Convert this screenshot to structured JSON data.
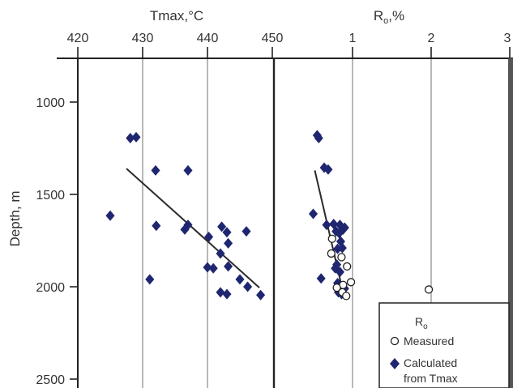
{
  "colors": {
    "diamond": "#1f2670",
    "trend": "#2a2a2a",
    "grid": "#888888",
    "axis": "#222222",
    "text": "#333333"
  },
  "chart_data": [
    {
      "type": "scatter",
      "title": "",
      "xlabel": "Tmax,°C",
      "ylabel": "Depth, m",
      "x_axis_position": "top",
      "xlim": [
        420,
        450
      ],
      "ylim": [
        2500,
        800
      ],
      "y_inverted": true,
      "xticks": [
        "420",
        "430",
        "440",
        "450"
      ],
      "yticks": [
        "1000",
        "1500",
        "2000",
        "2500"
      ],
      "grid": "vertical",
      "series": [
        {
          "marker": "diamond",
          "color": "#1f2670",
          "points": [
            [
              428.1,
              1195
            ],
            [
              429.0,
              1190
            ],
            [
              432.0,
              1370
            ],
            [
              437.0,
              1370
            ],
            [
              425.0,
              1615
            ],
            [
              432.1,
              1670
            ],
            [
              436.5,
              1690
            ],
            [
              437.0,
              1665
            ],
            [
              440.2,
              1730
            ],
            [
              443.0,
              1705
            ],
            [
              442.2,
              1675
            ],
            [
              446.0,
              1700
            ],
            [
              442.0,
              1820
            ],
            [
              443.2,
              1765
            ],
            [
              440.0,
              1895
            ],
            [
              440.9,
              1900
            ],
            [
              443.2,
              1890
            ],
            [
              431.1,
              1960
            ],
            [
              445.0,
              1960
            ],
            [
              446.2,
              2000
            ],
            [
              442.0,
              2030
            ],
            [
              443.0,
              2040
            ],
            [
              448.2,
              2045
            ]
          ]
        }
      ],
      "trendline": [
        [
          427.5,
          1360
        ],
        [
          448.0,
          2005
        ]
      ]
    },
    {
      "type": "scatter",
      "title": "",
      "xlabel": "R",
      "xlabel_sub": "o",
      "xlabel_tail": ",%",
      "ylabel": "",
      "x_axis_position": "top",
      "xlim": [
        0,
        3
      ],
      "ylim": [
        2500,
        800
      ],
      "y_inverted": true,
      "xticks": [
        "1",
        "2",
        "3"
      ],
      "grid": "vertical",
      "series": [
        {
          "name": "Measured",
          "marker": "circle-open",
          "points": [
            [
              0.74,
              1740
            ],
            [
              0.73,
              1820
            ],
            [
              0.86,
              1840
            ],
            [
              0.93,
              1890
            ],
            [
              0.98,
              1975
            ],
            [
              0.88,
              1990
            ],
            [
              0.8,
              2005
            ],
            [
              0.87,
              2030
            ],
            [
              0.92,
              2050
            ],
            [
              1.97,
              2015
            ]
          ]
        },
        {
          "name": "Calculated from Tmax",
          "marker": "diamond",
          "color": "#1f2670",
          "points": [
            [
              0.57,
              1195
            ],
            [
              0.55,
              1180
            ],
            [
              0.64,
              1355
            ],
            [
              0.69,
              1365
            ],
            [
              0.5,
              1605
            ],
            [
              0.6,
              1955
            ],
            [
              0.67,
              1665
            ],
            [
              0.76,
              1660
            ],
            [
              0.84,
              1665
            ],
            [
              0.88,
              1690
            ],
            [
              0.9,
              1680
            ],
            [
              0.79,
              1700
            ],
            [
              0.83,
              1710
            ],
            [
              0.85,
              1755
            ],
            [
              0.87,
              1790
            ],
            [
              0.81,
              1795
            ],
            [
              0.8,
              1880
            ],
            [
              0.78,
              1900
            ],
            [
              0.84,
              1920
            ],
            [
              0.81,
              1980
            ],
            [
              0.87,
              2000
            ],
            [
              0.9,
              2010
            ],
            [
              0.82,
              2030
            ],
            [
              0.86,
              2040
            ]
          ]
        }
      ],
      "trendline": [
        [
          0.52,
          1370
        ],
        [
          0.88,
          2030
        ]
      ],
      "legend": {
        "placement": "bottom-right",
        "title": "R",
        "title_sub": "o",
        "entries": [
          {
            "marker": "circle-open",
            "label": "Measured"
          },
          {
            "marker": "diamond",
            "label_lines": [
              "Calculated",
              "from Tmax"
            ]
          }
        ]
      }
    }
  ]
}
